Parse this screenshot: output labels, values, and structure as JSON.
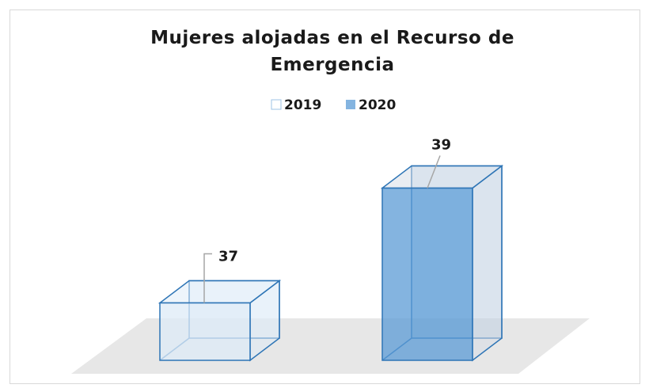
{
  "chart_data": {
    "type": "bar3d",
    "title": "Mujeres alojadas en el Recurso de Emergencia",
    "categories": [
      null
    ],
    "series": [
      {
        "name": "2019",
        "color": "#deebf7",
        "values": [
          37
        ]
      },
      {
        "name": "2020",
        "color": "#5b9bd5",
        "values": [
          39
        ]
      }
    ],
    "ylim": [
      36,
      40
    ],
    "legend": "top"
  }
}
